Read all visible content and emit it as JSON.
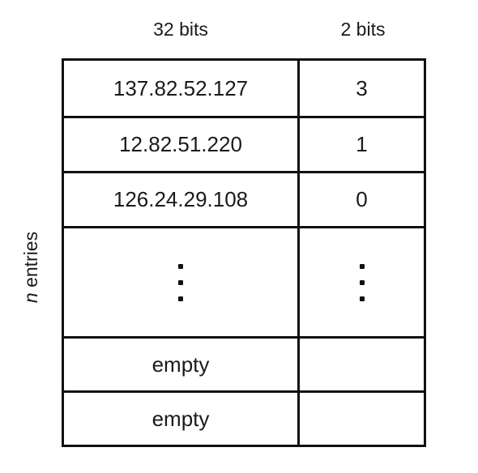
{
  "columns": {
    "address_header": "32 bits",
    "bits_header": "2 bits"
  },
  "side_label": {
    "variable": "n",
    "text": "entries"
  },
  "rows": [
    {
      "address": "137.82.52.127",
      "bits": "3"
    },
    {
      "address": "12.82.51.220",
      "bits": "1"
    },
    {
      "address": "126.24.29.108",
      "bits": "0"
    }
  ],
  "empty_rows": [
    {
      "address": "empty",
      "bits": ""
    },
    {
      "address": "empty",
      "bits": ""
    }
  ]
}
